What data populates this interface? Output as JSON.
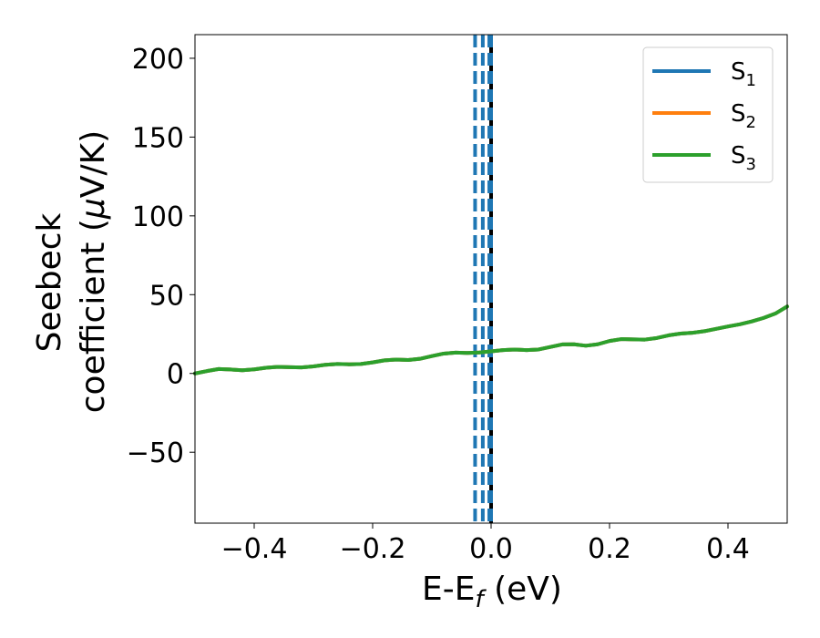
{
  "chart_data": {
    "type": "line",
    "xlabel": {
      "main": "E-E",
      "sub": "f",
      "suffix": " (eV)"
    },
    "ylabel": {
      "line1": "Seebeck",
      "line2_prefix": "coefficient  (",
      "line2_mu": "μ",
      "line2_suffix": "V/K)"
    },
    "xlim": [
      -0.5,
      0.5
    ],
    "ylim": [
      -95,
      215
    ],
    "xticks": [
      -0.4,
      -0.2,
      0.0,
      0.2,
      0.4
    ],
    "xtick_labels": [
      "−0.4",
      "−0.2",
      "0.0",
      "0.2",
      "0.4"
    ],
    "yticks": [
      -50,
      0,
      50,
      100,
      150,
      200
    ],
    "ytick_labels": [
      "−50",
      "0",
      "50",
      "100",
      "150",
      "200"
    ],
    "grid": false,
    "legend_position": "top-right",
    "x": [
      -0.5,
      -0.48,
      -0.46,
      -0.44,
      -0.42,
      -0.4,
      -0.38,
      -0.36,
      -0.34,
      -0.32,
      -0.3,
      -0.28,
      -0.26,
      -0.24,
      -0.22,
      -0.2,
      -0.18,
      -0.16,
      -0.14,
      -0.12,
      -0.1,
      -0.08,
      -0.06,
      -0.04,
      -0.02,
      0.0,
      0.02,
      0.04,
      0.06,
      0.08,
      0.1,
      0.12,
      0.14,
      0.16,
      0.18,
      0.2,
      0.22,
      0.24,
      0.26,
      0.28,
      0.3,
      0.32,
      0.34,
      0.36,
      0.38,
      0.4,
      0.42,
      0.44,
      0.46,
      0.48,
      0.5
    ],
    "series": [
      {
        "name": "S",
        "sub": "1",
        "color": "#1f77b4",
        "values": [
          0.0,
          1.5,
          2.8,
          2.5,
          2.0,
          2.6,
          3.6,
          4.2,
          4.0,
          3.8,
          4.5,
          5.5,
          6.0,
          5.8,
          6.0,
          7.0,
          8.3,
          8.8,
          8.5,
          9.3,
          11.0,
          12.6,
          13.2,
          13.0,
          13.3,
          14.0,
          14.8,
          15.2,
          14.8,
          15.2,
          16.8,
          18.4,
          18.5,
          17.6,
          18.5,
          20.6,
          21.8,
          21.6,
          21.5,
          22.5,
          24.2,
          25.3,
          25.8,
          26.8,
          28.3,
          29.8,
          31.2,
          33.0,
          35.2,
          38.0,
          42.5
        ]
      },
      {
        "name": "S",
        "sub": "2",
        "color": "#ff7f0e",
        "values": [
          0.0,
          1.5,
          2.8,
          2.5,
          2.0,
          2.6,
          3.6,
          4.2,
          4.0,
          3.8,
          4.5,
          5.5,
          6.0,
          5.8,
          6.0,
          7.0,
          8.3,
          8.8,
          8.5,
          9.3,
          11.0,
          12.6,
          13.2,
          13.0,
          13.3,
          14.0,
          14.8,
          15.2,
          14.8,
          15.2,
          16.8,
          18.4,
          18.5,
          17.6,
          18.5,
          20.6,
          21.8,
          21.6,
          21.5,
          22.5,
          24.2,
          25.3,
          25.8,
          26.8,
          28.3,
          29.8,
          31.2,
          33.0,
          35.2,
          38.0,
          42.5
        ]
      },
      {
        "name": "S",
        "sub": "3",
        "color": "#2ca02c",
        "values": [
          0.0,
          1.5,
          2.8,
          2.5,
          2.0,
          2.6,
          3.6,
          4.2,
          4.0,
          3.8,
          4.5,
          5.5,
          6.0,
          5.8,
          6.0,
          7.0,
          8.3,
          8.8,
          8.5,
          9.3,
          11.0,
          12.6,
          13.2,
          13.0,
          13.3,
          14.0,
          14.8,
          15.2,
          14.8,
          15.2,
          16.8,
          18.4,
          18.5,
          17.6,
          18.5,
          20.6,
          21.8,
          21.6,
          21.5,
          22.5,
          24.2,
          25.3,
          25.8,
          26.8,
          28.3,
          29.8,
          31.2,
          33.0,
          35.2,
          38.0,
          42.5
        ]
      }
    ],
    "vlines": [
      {
        "x": -0.027,
        "style": "dashed",
        "color": "#1f77b4"
      },
      {
        "x": -0.014,
        "style": "dashed",
        "color": "#1f77b4"
      },
      {
        "x": -0.003,
        "style": "dashed",
        "color": "#1f77b4"
      },
      {
        "x": 0.0,
        "style": "solid",
        "color": "#000000"
      },
      {
        "x": 0.0,
        "style": "dashed",
        "color": "#1f77b4"
      }
    ]
  }
}
